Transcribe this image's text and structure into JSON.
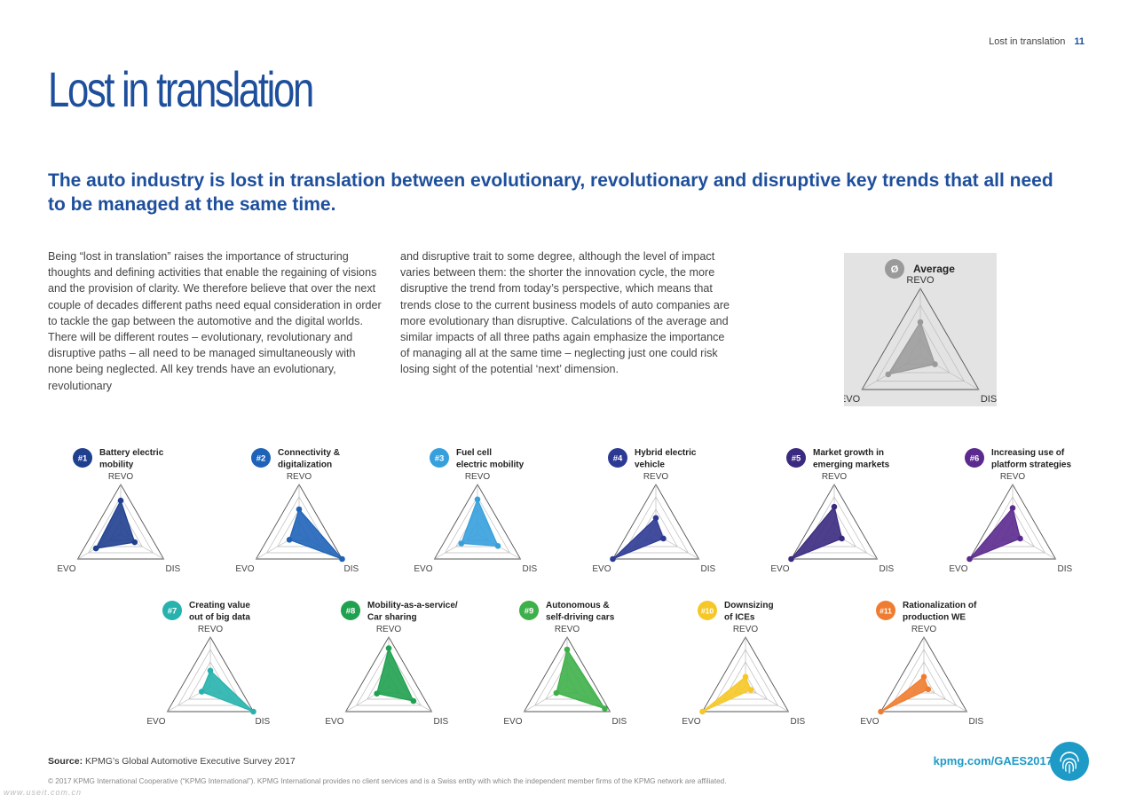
{
  "header": {
    "running_title": "Lost in translation",
    "page_number": "11"
  },
  "title": "Lost in translation",
  "subtitle": "The auto industry is lost in translation between evolutionary, revolutionary and disruptive key trends that all need to be managed at the same time.",
  "body": {
    "col1": "Being “lost in translation” raises the importance of structuring thoughts and defining activities that enable the regaining of visions and the provision of clarity. We therefore believe that over the next couple of decades different paths need equal consideration in order to tackle the gap between the automotive and the digital worlds. There will be different routes – evolutionary, revolutionary and disruptive paths – all need to be managed simultaneously with none being neglected. All key trends have an evolutionary, revolutionary",
    "col2": "and disruptive trait to some degree, although the level of impact varies between them: the shorter the innovation cycle, the more disruptive the trend from today’s perspective, which means that trends close to the current business models of auto companies are more evolutionary than disruptive. Calculations of the average and similar impacts of all three paths again emphasize the importance of managing all at the same time – neglecting just one could risk losing sight of the potential ‘next’ dimension."
  },
  "chart_data": {
    "type": "radar",
    "axes": [
      "REVO",
      "DIS",
      "EVO"
    ],
    "scale_max": 4,
    "gridlines": 4,
    "average": {
      "symbol": "Ø",
      "label": "Average",
      "color": "#9a9a9a",
      "values": {
        "REVO": 2.0,
        "DIS": 1.0,
        "EVO": 2.2
      }
    },
    "trends": [
      {
        "id": "#1",
        "label": [
          "Battery electric",
          "mobility"
        ],
        "color": "#1f3f8f",
        "values": {
          "REVO": 2.7,
          "DIS": 1.3,
          "EVO": 2.3
        }
      },
      {
        "id": "#2",
        "label": [
          "Connectivity &",
          "digitalization"
        ],
        "color": "#1f63b8",
        "values": {
          "REVO": 2.0,
          "DIS": 4.0,
          "EVO": 0.9
        }
      },
      {
        "id": "#3",
        "label": [
          "Fuel cell",
          "electric mobility"
        ],
        "color": "#36a0dd",
        "values": {
          "REVO": 2.8,
          "DIS": 1.9,
          "EVO": 1.5
        }
      },
      {
        "id": "#4",
        "label": [
          "Hybrid electric",
          "vehicle"
        ],
        "color": "#2d3a94",
        "values": {
          "REVO": 1.3,
          "DIS": 0.7,
          "EVO": 4.0
        }
      },
      {
        "id": "#5",
        "label": [
          "Market growth in",
          "emerging markets"
        ],
        "color": "#3b2a7f",
        "values": {
          "REVO": 2.2,
          "DIS": 0.7,
          "EVO": 4.0
        }
      },
      {
        "id": "#6",
        "label": [
          "Increasing use of",
          "platform strategies"
        ],
        "color": "#5b2a8e",
        "values": {
          "REVO": 2.1,
          "DIS": 0.7,
          "EVO": 4.0
        }
      },
      {
        "id": "#7",
        "label": [
          "Creating value",
          "out of big data"
        ],
        "color": "#27b2ad",
        "values": {
          "REVO": 1.3,
          "DIS": 4.0,
          "EVO": 0.8
        }
      },
      {
        "id": "#8",
        "label": [
          "Mobility-as-a-service/",
          "Car sharing"
        ],
        "color": "#1fa14f",
        "values": {
          "REVO": 3.1,
          "DIS": 2.3,
          "EVO": 1.1
        }
      },
      {
        "id": "#9",
        "label": [
          "Autonomous &",
          "self-driving cars"
        ],
        "color": "#3eb049",
        "values": {
          "REVO": 3.0,
          "DIS": 3.5,
          "EVO": 1.0
        }
      },
      {
        "id": "#10",
        "label": [
          "Downsizing",
          "of ICEs"
        ],
        "color": "#f6c827",
        "values": {
          "REVO": 0.8,
          "DIS": 0.5,
          "EVO": 4.0
        }
      },
      {
        "id": "#11",
        "label": [
          "Rationalization of",
          "production WE"
        ],
        "color": "#ef7d31",
        "values": {
          "REVO": 0.8,
          "DIS": 0.4,
          "EVO": 4.0
        }
      }
    ]
  },
  "footer": {
    "source_label": "Source:",
    "source_text": "KPMG’s Global Automotive Executive Survey 2017",
    "url": "kpmg.com/GAES2017",
    "copyright": "© 2017 KPMG International Cooperative (“KPMG International”). KPMG International provides no client services and is a Swiss entity with which the independent member firms of the KPMG network are affiliated.",
    "watermark": "www.useit.com.cn",
    "icon": "fingerprint-icon",
    "icon_color": "#1e9ac7"
  }
}
